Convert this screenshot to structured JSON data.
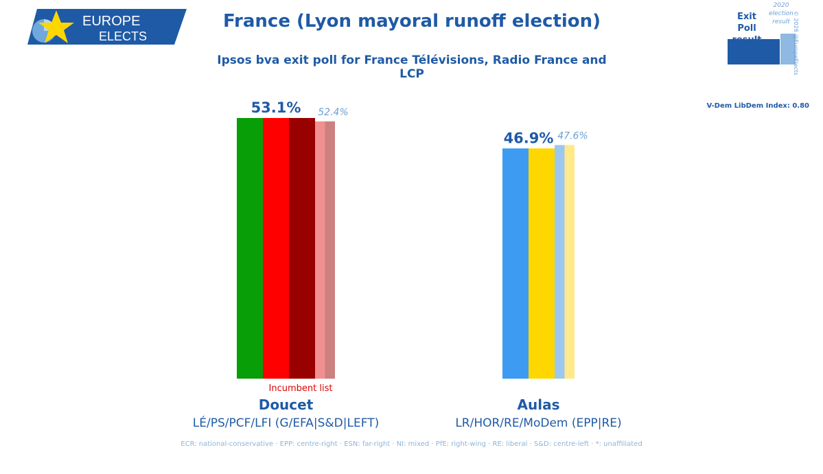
{
  "brand": {
    "line1": "EUROPE",
    "line2": "ELECTS"
  },
  "legend": {
    "exit_poll_label": "Exit Poll result",
    "previous_label": "2020 election result",
    "copyright": "© 2026 @EuropeElects"
  },
  "vdem": "V-Dem LibDem Index: 0.80",
  "footer": "ECR: national-conservative · EPP: centre-right · ESN: far-right · NI: mixed · PfE: right-wing · RE: liberal · S&D: centre-left · *: unaffiliated",
  "chart_data": {
    "type": "bar",
    "title": "France (Lyon mayoral runoff election)",
    "subtitle": "Ipsos bva exit poll for France Télévisions, Radio France and LCP",
    "ylim": [
      0,
      53.1
    ],
    "candidates": [
      {
        "name": "Doucet",
        "alliance": "LÉ/PS/PCF/LFI (G/EFA|S&D|LEFT)",
        "value": 53.1,
        "value_label": "53.1%",
        "previous": 52.4,
        "previous_label": "52.4%",
        "note": "Incumbent list",
        "colors": [
          "#089e08",
          "#ff0000",
          "#990000"
        ],
        "previous_colors": [
          "#f09090",
          "#cc8080"
        ]
      },
      {
        "name": "Aulas",
        "alliance": "LR/HOR/RE/MoDem (EPP|RE)",
        "value": 46.9,
        "value_label": "46.9%",
        "previous": 47.6,
        "previous_label": "47.6%",
        "note": "",
        "colors": [
          "#3d9bf2",
          "#ffd700"
        ],
        "previous_colors": [
          "#9cc8f0",
          "#ffe98a"
        ]
      }
    ]
  }
}
